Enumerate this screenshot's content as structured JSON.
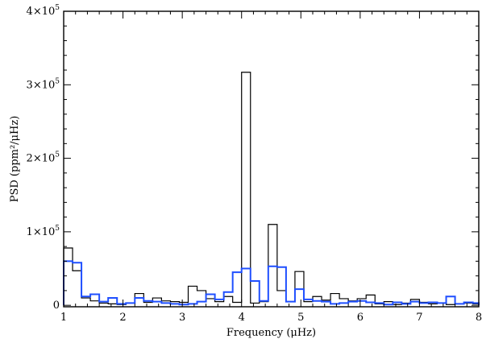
{
  "chart_data": {
    "type": "histogram",
    "xlabel": "Frequency (μHz)",
    "ylabel": "PSD (ppm²/μHz)",
    "xlim": [
      1,
      8
    ],
    "ylim": [
      -2000,
      400000
    ],
    "x_ticks": [
      1,
      2,
      3,
      4,
      5,
      6,
      7,
      8
    ],
    "x_tick_labels": [
      "1",
      "2",
      "3",
      "4",
      "5",
      "6",
      "7",
      "8"
    ],
    "y_ticks": [
      0,
      100000,
      200000,
      300000,
      400000
    ],
    "y_tick_labels": [
      {
        "base": "0",
        "exp": ""
      },
      {
        "base": "1×10",
        "exp": "5"
      },
      {
        "base": "2×10",
        "exp": "5"
      },
      {
        "base": "3×10",
        "exp": "5"
      },
      {
        "base": "4×10",
        "exp": "5"
      }
    ],
    "bin_edges": [
      1.0,
      1.15,
      1.3,
      1.45,
      1.6,
      1.75,
      1.9,
      2.05,
      2.2,
      2.35,
      2.5,
      2.65,
      2.8,
      2.95,
      3.1,
      3.25,
      3.4,
      3.55,
      3.7,
      3.85,
      4.0,
      4.15,
      4.3,
      4.45,
      4.6,
      4.75,
      4.9,
      5.05,
      5.2,
      5.35,
      5.5,
      5.65,
      5.8,
      5.95,
      6.1,
      6.25,
      6.4,
      6.55,
      6.7,
      6.85,
      7.0,
      7.15,
      7.3,
      7.45,
      7.6,
      7.75,
      7.9,
      8.0
    ],
    "series": [
      {
        "color": "#000000",
        "values": [
          78000,
          47000,
          10000,
          6000,
          3000,
          2000,
          1000,
          3000,
          16000,
          4000,
          10000,
          6000,
          5000,
          4000,
          26000,
          20000,
          9000,
          5000,
          12000,
          4000,
          317000,
          3000,
          5000,
          110000,
          20000,
          5000,
          46000,
          5000,
          12000,
          7000,
          16000,
          9000,
          6000,
          9000,
          14000,
          2000,
          5000,
          1000,
          3000,
          8000,
          4000,
          2000,
          3000,
          1000,
          2000,
          3000,
          2000
        ]
      },
      {
        "color": "#1f4fff",
        "values": [
          60000,
          58000,
          12000,
          15000,
          5000,
          10000,
          2000,
          3000,
          10000,
          6000,
          5000,
          3000,
          2000,
          1000,
          2000,
          5000,
          15000,
          8000,
          18000,
          45000,
          50000,
          33000,
          6000,
          53000,
          52000,
          5000,
          22000,
          8000,
          6000,
          5000,
          2000,
          3000,
          5000,
          6000,
          4000,
          3000,
          1000,
          4000,
          2000,
          5000,
          3000,
          4000,
          3000,
          12000,
          2000,
          4000,
          3000
        ]
      }
    ]
  }
}
